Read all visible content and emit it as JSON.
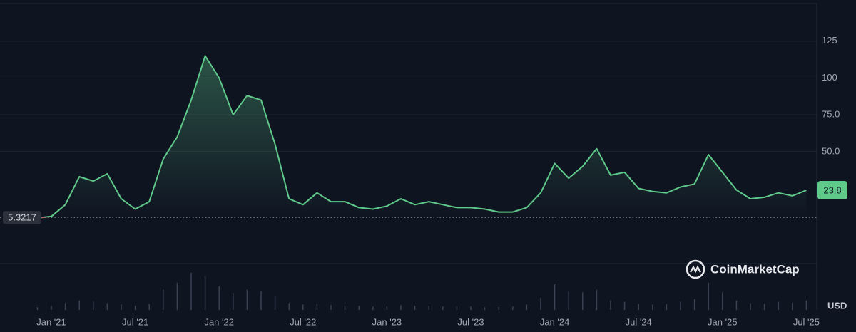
{
  "chart_data": {
    "type": "line",
    "x": [
      "2020-12",
      "2021-01",
      "2021-02",
      "2021-03",
      "2021-04",
      "2021-05",
      "2021-06",
      "2021-07",
      "2021-08",
      "2021-09",
      "2021-10",
      "2021-11",
      "2021-12",
      "2022-01",
      "2022-02",
      "2022-03",
      "2022-04",
      "2022-05",
      "2022-06",
      "2022-07",
      "2022-08",
      "2022-09",
      "2022-10",
      "2022-11",
      "2022-12",
      "2023-01",
      "2023-02",
      "2023-03",
      "2023-04",
      "2023-05",
      "2023-06",
      "2023-07",
      "2023-08",
      "2023-09",
      "2023-10",
      "2023-11",
      "2023-12",
      "2024-01",
      "2024-02",
      "2024-03",
      "2024-04",
      "2024-05",
      "2024-06",
      "2024-07",
      "2024-08",
      "2024-09",
      "2024-10",
      "2024-11",
      "2024-12",
      "2025-01",
      "2025-02",
      "2025-03",
      "2025-04",
      "2025-05",
      "2025-06",
      "2025-07"
    ],
    "series": [
      {
        "name": "USD",
        "color": "#5fc98a",
        "values": [
          5.0,
          6,
          14,
          33,
          30,
          35,
          18,
          11,
          16,
          45,
          60,
          85,
          115,
          100,
          75,
          88,
          85,
          55,
          18,
          14,
          22,
          16,
          16,
          12,
          11,
          13,
          18,
          14,
          16,
          14,
          12,
          12,
          11,
          9,
          9,
          12,
          22,
          42,
          32,
          40,
          52,
          34,
          36,
          25,
          23,
          22,
          26,
          28,
          48,
          36,
          24,
          18,
          19,
          22,
          20,
          23.8
        ]
      }
    ],
    "volume": [
      4,
      6,
      10,
      14,
      12,
      10,
      8,
      6,
      9,
      30,
      40,
      55,
      50,
      35,
      25,
      30,
      28,
      20,
      10,
      8,
      9,
      7,
      6,
      6,
      5,
      5,
      7,
      6,
      6,
      5,
      5,
      5,
      4,
      4,
      5,
      8,
      18,
      38,
      28,
      26,
      30,
      14,
      12,
      9,
      8,
      9,
      12,
      16,
      40,
      26,
      14,
      10,
      9,
      12,
      10,
      14
    ],
    "volume_lim": [
      0,
      60
    ],
    "baseline": 5.3217,
    "baseline_color": "#ea3943",
    "ylim": [
      -26,
      150.5
    ],
    "yticks": [
      50,
      75,
      100,
      125
    ],
    "ytick_labels": [
      "50.0",
      "75.0",
      "100",
      "125"
    ],
    "xticks": [
      {
        "value": "2021-01",
        "label": "Jan '21"
      },
      {
        "value": "2021-07",
        "label": "Jul '21"
      },
      {
        "value": "2022-01",
        "label": "Jan '22"
      },
      {
        "value": "2022-07",
        "label": "Jul '22"
      },
      {
        "value": "2023-01",
        "label": "Jan '23"
      },
      {
        "value": "2023-07",
        "label": "Jul '23"
      },
      {
        "value": "2024-01",
        "label": "Jan '24"
      },
      {
        "value": "2024-07",
        "label": "Jul '24"
      },
      {
        "value": "2025-01",
        "label": "Jan '25"
      },
      {
        "value": "2025-07",
        "label": "Jul '25"
      }
    ],
    "grid": true,
    "brand": "CoinMarketCap",
    "currency": "USD"
  }
}
